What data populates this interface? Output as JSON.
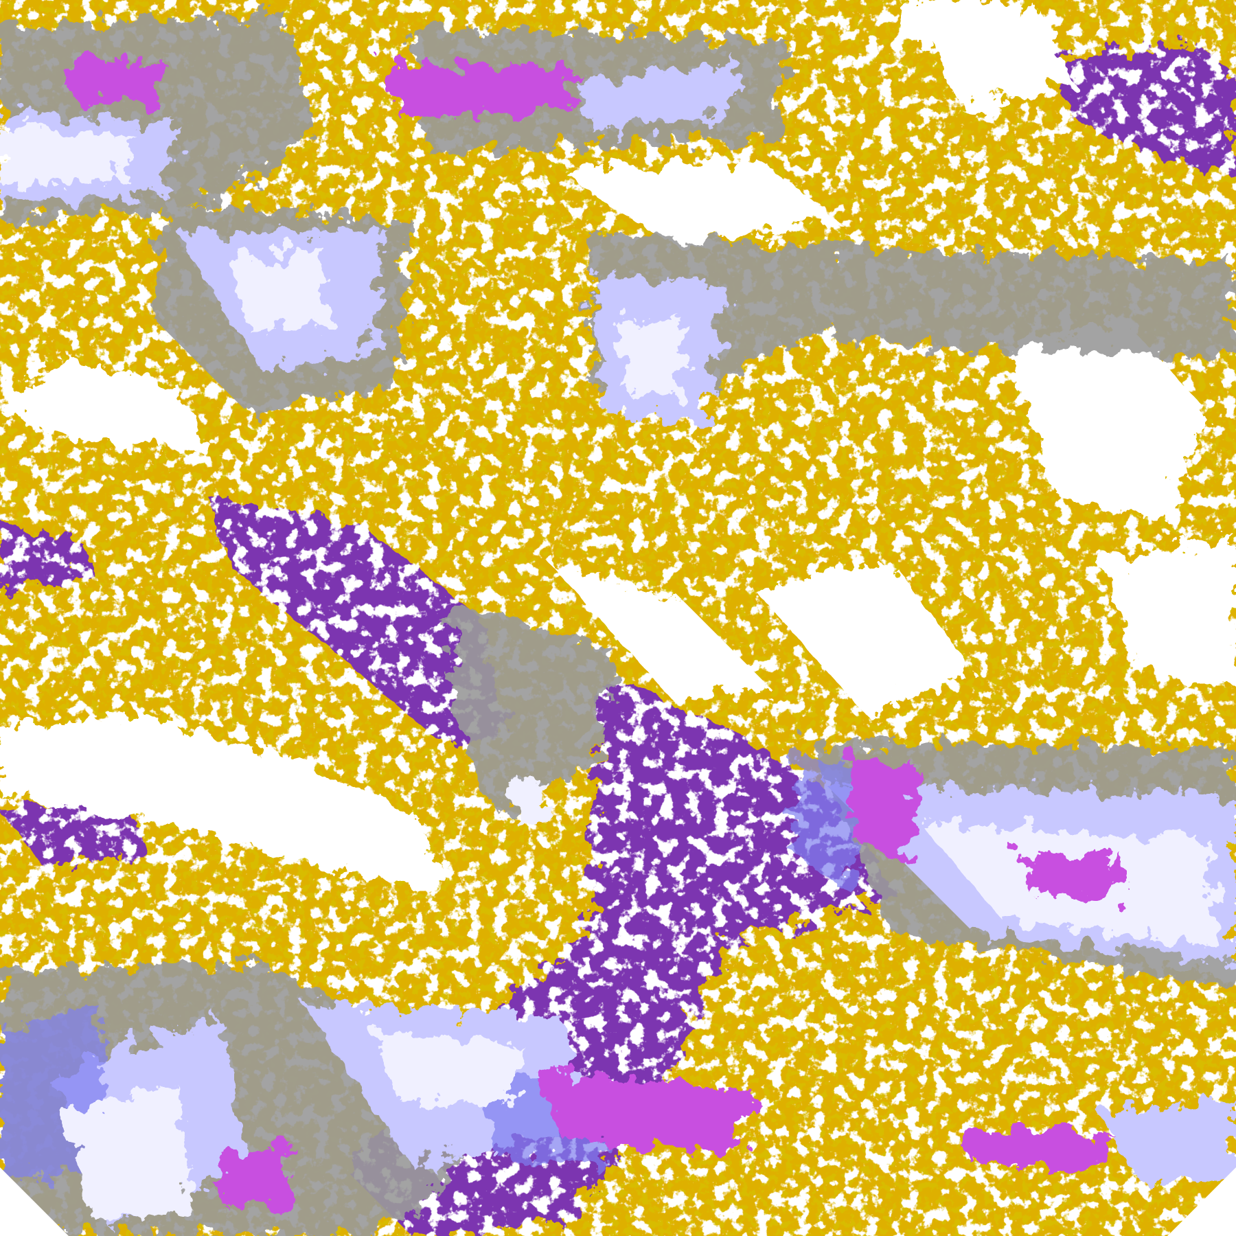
{
  "map": {
    "type": "false-color satellite cloud classification",
    "palette": {
      "clear": "#ffffff",
      "low_cloud": "#deb000",
      "low_cloud_dark": "#b08000",
      "mid_cloud": "#9a9a9a",
      "high_cloud_light": "#f0f0ff",
      "high_cloud": "#c8c8ff",
      "high_cloud_blue": "#8080f0",
      "deep_convective": "#c850e0",
      "ocean_clear": "#7b35b0"
    }
  }
}
